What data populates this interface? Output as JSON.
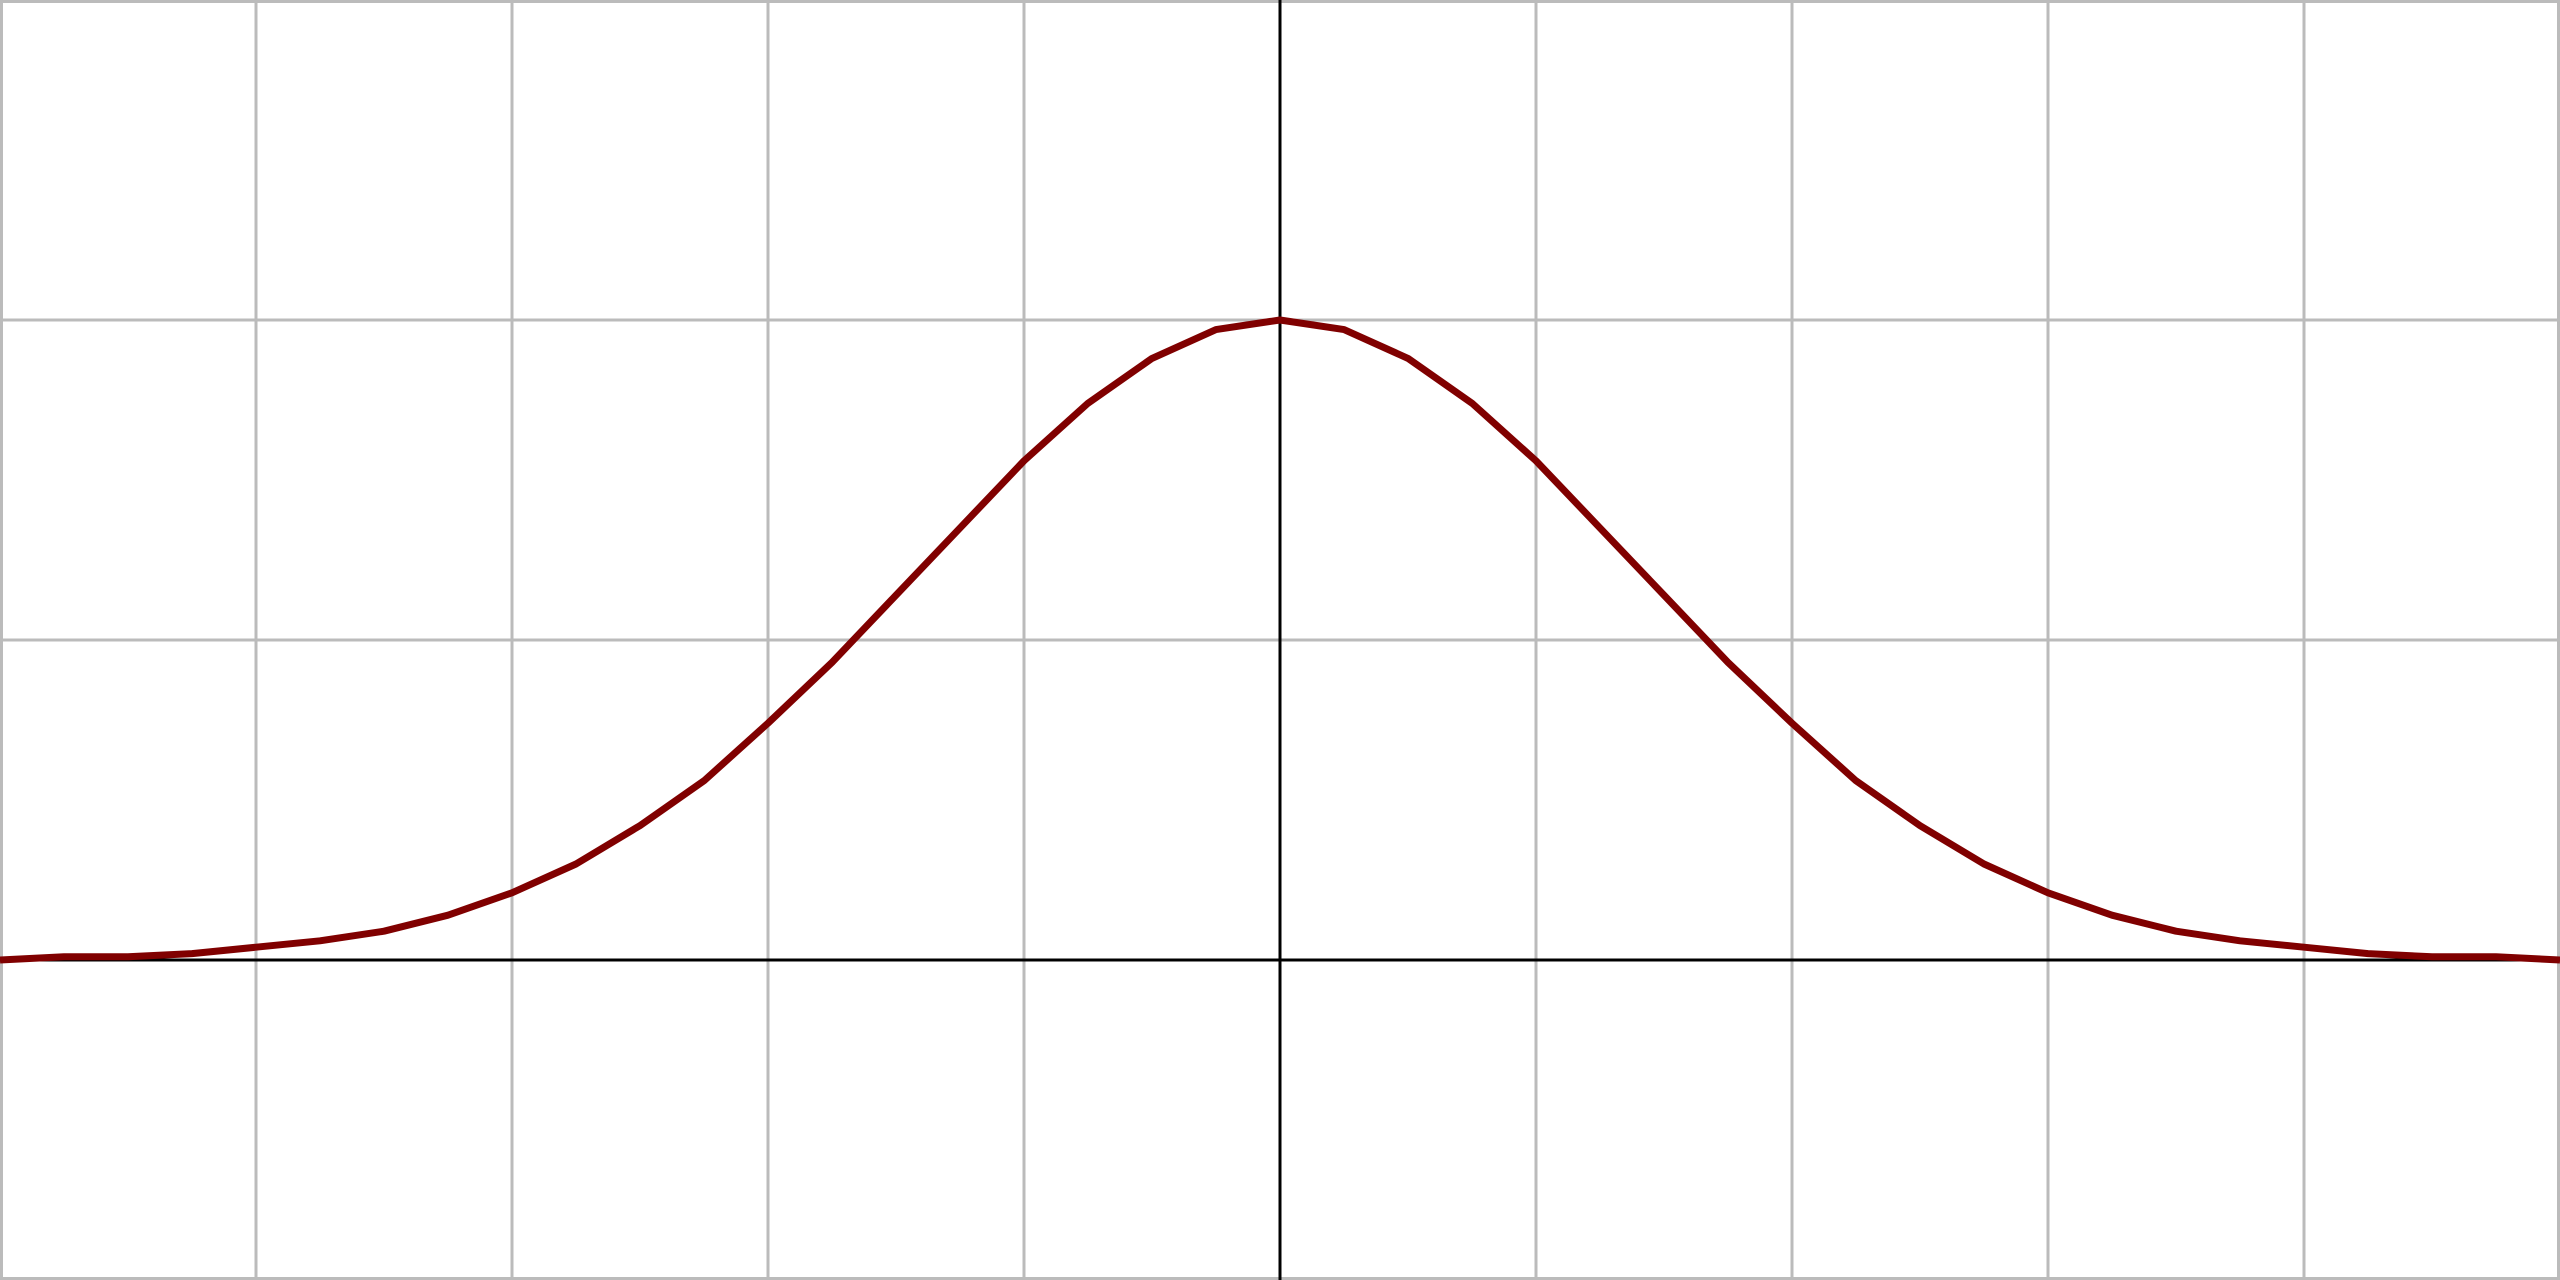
{
  "chart_data": {
    "type": "line",
    "x": [
      -5,
      -4.75,
      -4.5,
      -4.25,
      -4,
      -3.75,
      -3.5,
      -3.25,
      -3,
      -2.75,
      -2.5,
      -2.25,
      -2,
      -1.75,
      -1.5,
      -1.25,
      -1,
      -0.75,
      -0.5,
      -0.25,
      0,
      0.25,
      0.5,
      0.75,
      1,
      1.25,
      1.5,
      1.75,
      2,
      2.25,
      2.5,
      2.75,
      3,
      3.25,
      3.5,
      3.75,
      4,
      4.25,
      4.5,
      4.75,
      5
    ],
    "series": [
      {
        "color": "#800000",
        "values": [
          0,
          0.01,
          0.01,
          0.02,
          0.04,
          0.06,
          0.09,
          0.14,
          0.21,
          0.3,
          0.42,
          0.56,
          0.74,
          0.93,
          1.14,
          1.35,
          1.56,
          1.74,
          1.88,
          1.97,
          2,
          1.97,
          1.88,
          1.74,
          1.56,
          1.35,
          1.14,
          0.93,
          0.74,
          0.56,
          0.42,
          0.3,
          0.21,
          0.14,
          0.09,
          0.06,
          0.04,
          0.02,
          0.01,
          0.01,
          0
        ]
      }
    ],
    "xlim": [
      -5,
      5
    ],
    "ylim": [
      -1,
      3
    ],
    "xticks": [
      -5,
      -4,
      -3,
      -2,
      -1,
      0,
      1,
      2,
      3,
      4,
      5
    ],
    "yticks": [
      -1,
      0,
      1,
      2,
      3
    ],
    "grid": true,
    "grid_color": "#bbbbbb",
    "axis_color": "#000000"
  }
}
